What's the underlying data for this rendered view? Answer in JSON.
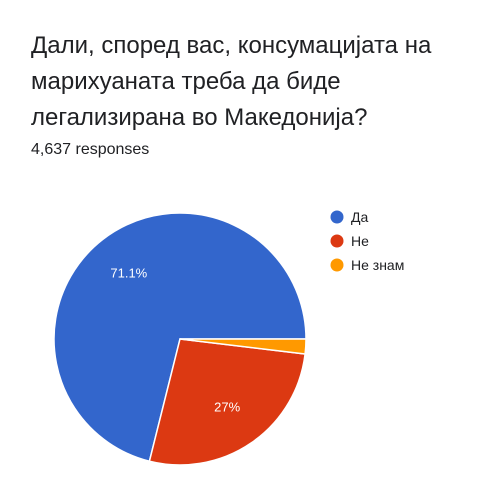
{
  "question": {
    "title": "Дали, според вас, консумацијата на марихуаната треба да биде легализирана во Македонија?"
  },
  "summary": {
    "responses_label": "4,637 responses"
  },
  "chart_data": {
    "type": "pie",
    "title": "",
    "series": [
      {
        "name": "",
        "values": [
          71.1,
          27.0,
          1.9
        ]
      }
    ],
    "categories": [
      "Да",
      "Не",
      "Не знам"
    ],
    "value_labels": [
      "71.1%",
      "27%",
      ""
    ],
    "colors": [
      "#3366cc",
      "#dc3912",
      "#ff9900"
    ],
    "legend_placement": "right",
    "start_angle_deg": 0
  }
}
